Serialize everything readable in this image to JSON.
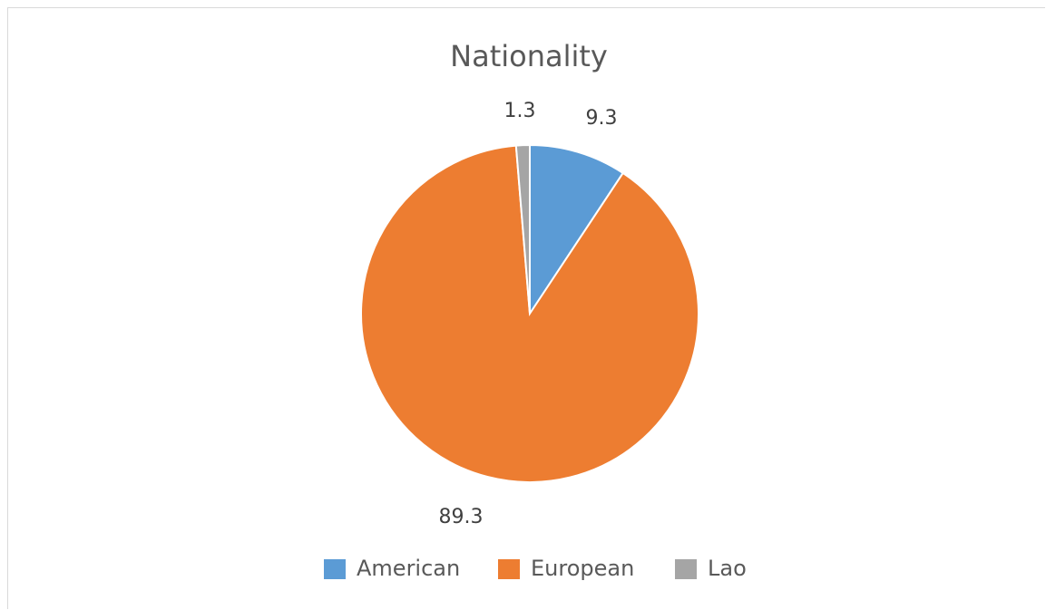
{
  "chart_data": {
    "type": "pie",
    "title": "Nationality",
    "slices": [
      {
        "label": "American",
        "value": 9.3,
        "color": "#5b9bd5"
      },
      {
        "label": "European",
        "value": 89.3,
        "color": "#ed7d31"
      },
      {
        "label": "Lao",
        "value": 1.3,
        "color": "#a5a5a5"
      }
    ],
    "legend_position": "bottom",
    "data_labels": true
  }
}
